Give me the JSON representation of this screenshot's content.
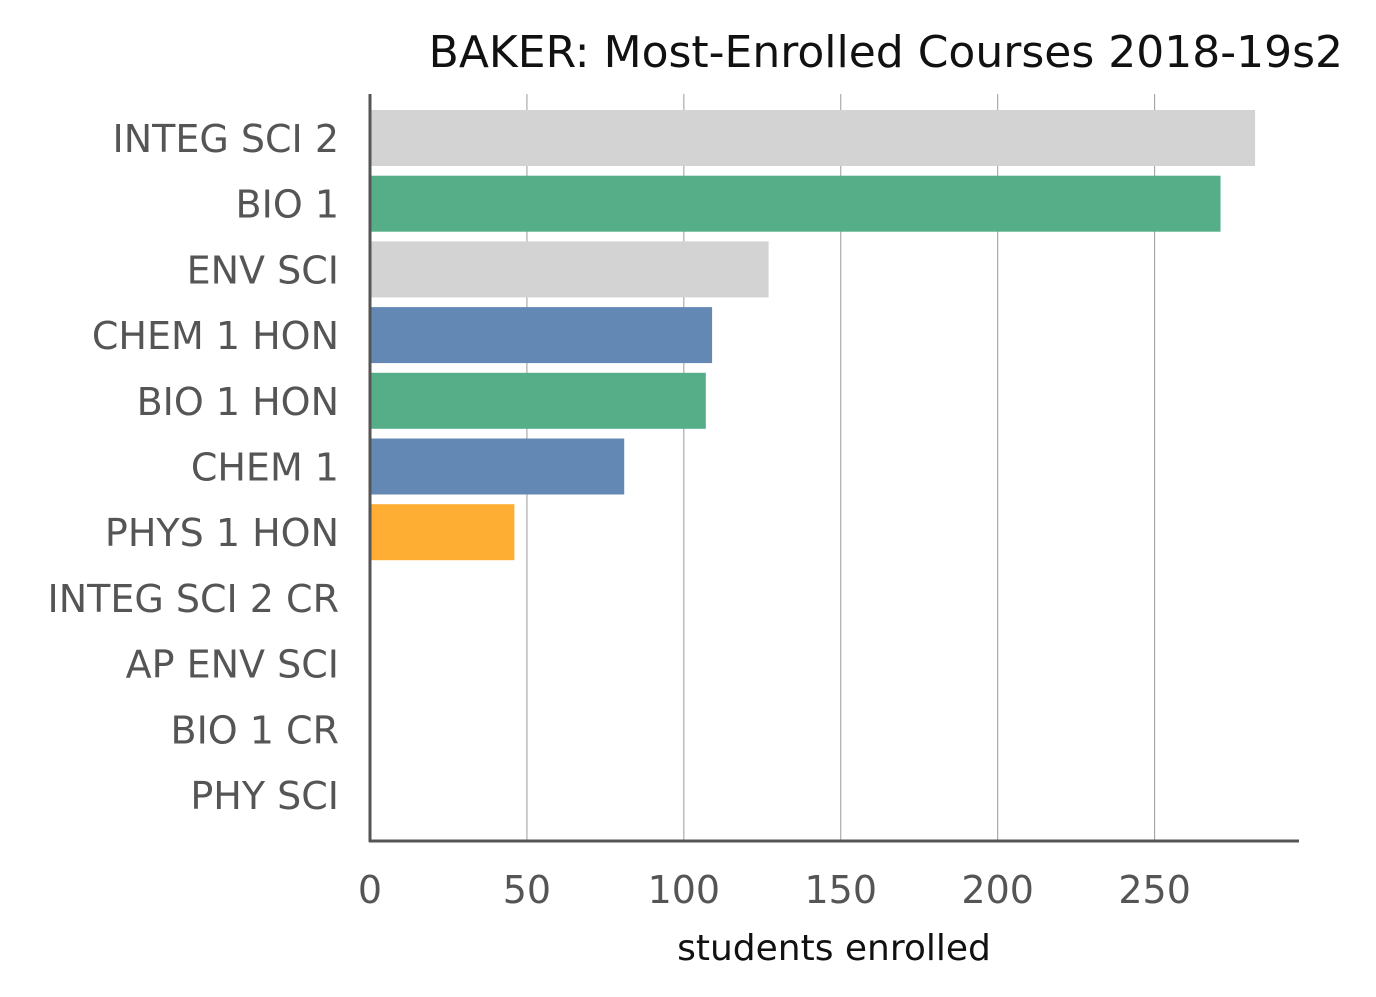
{
  "chart_data": {
    "type": "bar",
    "orientation": "horizontal",
    "title": "BAKER: Most-Enrolled Courses 2018-19s2",
    "xlabel": "students enrolled",
    "ylabel": "",
    "xlim": [
      0,
      296
    ],
    "xticks": [
      0,
      50,
      100,
      150,
      200,
      250
    ],
    "grid": "vertical",
    "categories": [
      "INTEG SCI 2",
      "BIO 1",
      "ENV SCI",
      "CHEM 1 HON",
      "BIO 1 HON",
      "CHEM 1",
      "PHYS 1 HON",
      "INTEG SCI 2 CR",
      "AP ENV SCI",
      "BIO 1 CR",
      "PHY SCI"
    ],
    "values": [
      282,
      271,
      127,
      109,
      107,
      81,
      46,
      0,
      0,
      0,
      0
    ],
    "colors": [
      "#d3d3d3",
      "#56ae89",
      "#d3d3d3",
      "#6488b4",
      "#56ae89",
      "#6488b4",
      "#feae33",
      "#d3d3d3",
      "#d3d3d3",
      "#d3d3d3",
      "#d3d3d3"
    ]
  }
}
